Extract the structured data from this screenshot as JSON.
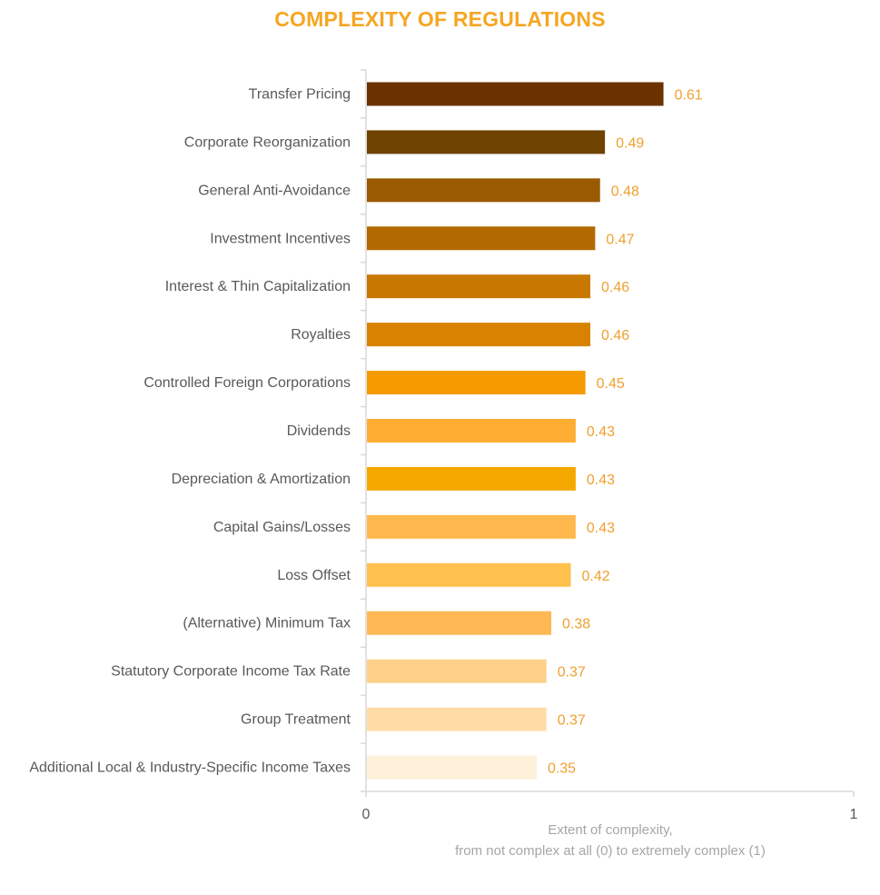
{
  "chart_data": {
    "type": "bar",
    "orientation": "horizontal",
    "title": "COMPLEXITY OF REGULATIONS",
    "categories": [
      "Transfer Pricing",
      "Corporate Reorganization",
      "General Anti-Avoidance",
      "Investment Incentives",
      "Interest & Thin Capitalization",
      "Royalties",
      "Controlled Foreign Corporations",
      "Dividends",
      "Depreciation & Amortization",
      "Capital Gains/Losses",
      "Loss Offset",
      "(Alternative) Minimum Tax",
      "Statutory Corporate Income Tax Rate",
      "Group Treatment",
      "Additional Local & Industry-Specific Income Taxes"
    ],
    "values": [
      0.61,
      0.49,
      0.48,
      0.47,
      0.46,
      0.46,
      0.45,
      0.43,
      0.43,
      0.43,
      0.42,
      0.38,
      0.37,
      0.37,
      0.35
    ],
    "value_labels": [
      "0.61",
      "0.49",
      "0.48",
      "0.47",
      "0.46",
      "0.46",
      "0.45",
      "0.43",
      "0.43",
      "0.43",
      "0.42",
      "0.38",
      "0.37",
      "0.37",
      "0.35"
    ],
    "bar_colors": [
      "#6b3200",
      "#6e4200",
      "#9a5a00",
      "#b26a00",
      "#c87800",
      "#d88200",
      "#f59b00",
      "#ffae33",
      "#f5a800",
      "#ffb84d",
      "#ffc04d",
      "#ffb854",
      "#ffd08a",
      "#ffdca6",
      "#fff0d9"
    ],
    "xlim": [
      0,
      1
    ],
    "x_ticks": [
      "0",
      "1"
    ],
    "xlabel_lines": [
      "Extent of complexity,",
      "from not complex at all (0) to extremely complex (1)"
    ],
    "grid": false,
    "legend": "none"
  }
}
